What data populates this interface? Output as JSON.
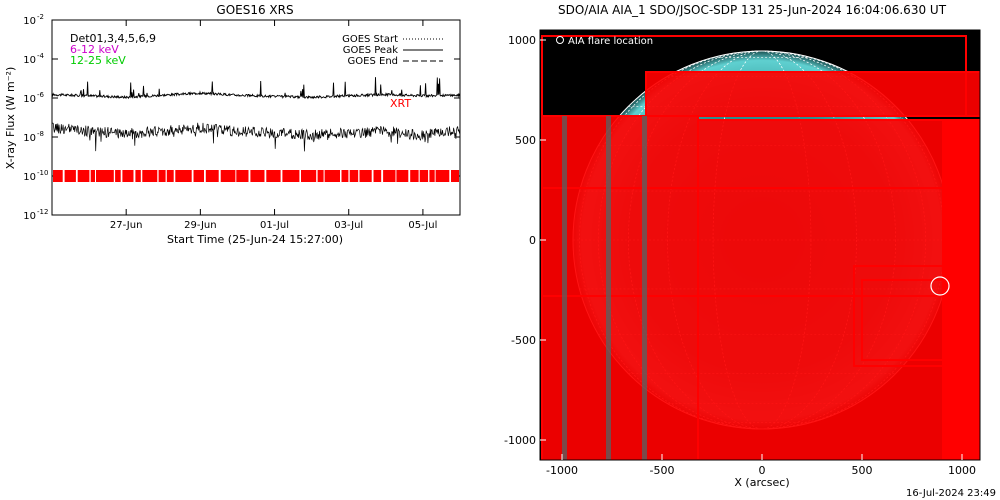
{
  "left_panel": {
    "title": "GOES16 XRS",
    "ylabel": "X-ray Flux (W m⁻²)",
    "xlabel": "Start Time (25-Jun-24 15:27:00)",
    "band_legend": [
      {
        "label": "Det01,3,4,5,6,9",
        "color": "#000000"
      },
      {
        "label": "6-12 keV",
        "color": "#cc00cc"
      },
      {
        "label": "12-25 keV",
        "color": "#00cc00"
      }
    ],
    "line_legend": [
      {
        "label": "GOES Start",
        "style": "dotted"
      },
      {
        "label": "GOES Peak",
        "style": "solid"
      },
      {
        "label": "GOES End",
        "style": "dashed"
      }
    ],
    "xrt_label": "XRT",
    "xrt_color": "#ff0000"
  },
  "right_panel": {
    "title": "SDO/AIA AIA_1 SDO/JSOC-SDP 131 25-Jun-2024 16:04:06.630 UT",
    "legend_label": "AIA flare location",
    "xlabel": "X (arcsec)",
    "footer": "16-Jul-2024 23:49",
    "sun_color": "#2aa8a8",
    "box_color": "#ff0000"
  },
  "chart_data": [
    {
      "type": "line",
      "title": "GOES16 XRS",
      "xlabel": "Start Time (25-Jun-24 15:27:00)",
      "ylabel": "X-ray Flux (W m⁻²)",
      "y_scale": "log",
      "ylim": [
        1e-12,
        0.01
      ],
      "y_ticks": [
        1e-12,
        1e-10,
        1e-08,
        1e-06,
        0.0001,
        0.01
      ],
      "y_tick_labels": [
        [
          "10",
          "-12"
        ],
        [
          "10",
          "-10"
        ],
        [
          "10",
          "-8"
        ],
        [
          "10",
          "-6"
        ],
        [
          "10",
          "-4"
        ],
        [
          "10",
          "-2"
        ]
      ],
      "xlim": [
        "2024-06-25",
        "2024-07-06"
      ],
      "x_ticks": [
        "2024-06-27",
        "2024-06-29",
        "2024-07-01",
        "2024-07-03",
        "2024-07-05"
      ],
      "x_tick_labels": [
        "27-Jun",
        "29-Jun",
        "01-Jul",
        "03-Jul",
        "05-Jul"
      ],
      "series": [
        {
          "name": "GOES Peak",
          "x": [
            "2024-06-25",
            "2024-06-26",
            "2024-06-27",
            "2024-06-28",
            "2024-06-29",
            "2024-06-30",
            "2024-07-01",
            "2024-07-02",
            "2024-07-03",
            "2024-07-04",
            "2024-07-05",
            "2024-07-06"
          ],
          "values": [
            1.5e-06,
            1.3e-06,
            1.1e-06,
            1.4e-06,
            1.8e-06,
            1.4e-06,
            1.2e-06,
            1.1e-06,
            1.3e-06,
            1.5e-06,
            1.3e-06,
            1.4e-06
          ]
        },
        {
          "name": "",
          "x": [
            "2024-06-25",
            "2024-06-26",
            "2024-06-27",
            "2024-06-28",
            "2024-06-29",
            "2024-06-30",
            "2024-07-01",
            "2024-07-02",
            "2024-07-03",
            "2024-07-04",
            "2024-07-05",
            "2024-07-06"
          ],
          "values": [
            3e-08,
            2e-08,
            1.5e-08,
            2e-08,
            3e-08,
            2e-08,
            1.5e-08,
            1.3e-08,
            1.6e-08,
            2e-08,
            1.2e-08,
            2.5e-08
          ]
        }
      ],
      "xrt_band_flux": 1e-10
    },
    {
      "type": "scatter",
      "title": "SDO/AIA AIA_1 SDO/JSOC-SDP 131 25-Jun-2024 16:04:06.630 UT",
      "xlabel": "X (arcsec)",
      "ylabel": "",
      "xlim": [
        -1100,
        1100
      ],
      "ylim": [
        -1100,
        1100
      ],
      "x_ticks": [
        -1000,
        -500,
        0,
        500,
        1000
      ],
      "y_ticks": [
        -1000,
        -500,
        0,
        500,
        1000
      ],
      "solar_radius_arcsec": 945,
      "flare_location": {
        "x": 890,
        "y": -230
      }
    }
  ]
}
